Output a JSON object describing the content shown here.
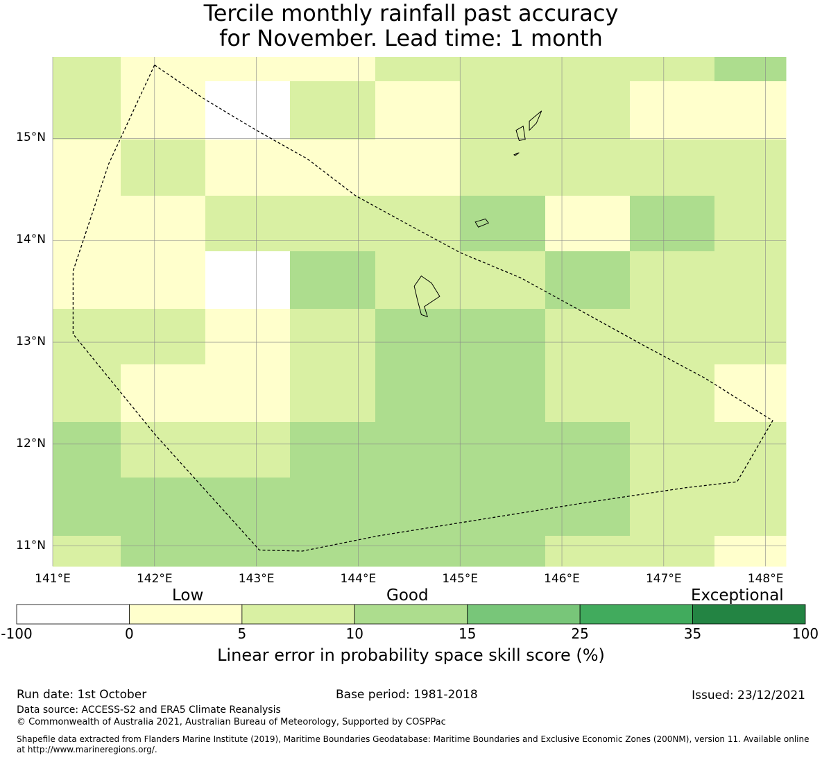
{
  "title_line1": "Tercile monthly rainfall past accuracy",
  "title_line2": "for November. Lead time: 1 month",
  "map": {
    "lon_range": [
      141.0,
      148.2
    ],
    "lat_range": [
      10.8,
      15.8
    ],
    "lon_ticks": [
      141,
      142,
      143,
      144,
      145,
      146,
      147,
      148
    ],
    "lat_ticks": [
      11,
      12,
      13,
      14,
      15
    ],
    "lon_tick_labels": [
      "141°E",
      "142°E",
      "143°E",
      "144°E",
      "145°E",
      "146°E",
      "147°E",
      "148°E"
    ],
    "lat_tick_labels": [
      "11°N",
      "12°N",
      "13°N",
      "14°N",
      "15°N"
    ],
    "grid_lon_edges": [
      141.0,
      141.667,
      142.5,
      143.333,
      144.167,
      145.0,
      145.833,
      146.667,
      147.5,
      148.2
    ],
    "grid_lat_edges": [
      15.8,
      15.56,
      14.99,
      14.44,
      13.89,
      13.33,
      12.78,
      12.22,
      11.67,
      11.1,
      10.8
    ],
    "skill_grid_classes": [
      [
        2,
        1,
        1,
        1,
        2,
        2,
        2,
        2,
        3
      ],
      [
        2,
        1,
        0,
        2,
        1,
        2,
        2,
        1,
        1
      ],
      [
        1,
        2,
        1,
        1,
        1,
        2,
        2,
        2,
        2
      ],
      [
        1,
        1,
        2,
        2,
        2,
        3,
        1,
        3,
        2
      ],
      [
        1,
        1,
        0,
        3,
        2,
        2,
        3,
        2,
        2
      ],
      [
        2,
        2,
        1,
        2,
        3,
        3,
        2,
        2,
        2
      ],
      [
        2,
        1,
        1,
        2,
        3,
        3,
        2,
        2,
        1
      ],
      [
        3,
        2,
        2,
        3,
        3,
        3,
        3,
        2,
        2
      ],
      [
        3,
        3,
        3,
        3,
        3,
        3,
        3,
        2,
        2
      ],
      [
        2,
        3,
        3,
        3,
        3,
        3,
        2,
        2,
        1
      ]
    ],
    "eez_boundary": [
      [
        142.0,
        15.72
      ],
      [
        142.5,
        15.38
      ],
      [
        143.0,
        15.08
      ],
      [
        143.5,
        14.8
      ],
      [
        143.97,
        14.44
      ],
      [
        144.5,
        14.15
      ],
      [
        145.0,
        13.88
      ],
      [
        145.6,
        13.63
      ],
      [
        146.2,
        13.3
      ],
      [
        146.8,
        12.97
      ],
      [
        147.4,
        12.65
      ],
      [
        148.07,
        12.23
      ],
      [
        147.72,
        11.63
      ],
      [
        147.2,
        11.57
      ],
      [
        146.2,
        11.42
      ],
      [
        145.2,
        11.26
      ],
      [
        144.2,
        11.1
      ],
      [
        143.45,
        10.95
      ],
      [
        143.03,
        10.96
      ],
      [
        142.0,
        12.1
      ],
      [
        141.2,
        13.08
      ],
      [
        141.2,
        13.7
      ],
      [
        141.55,
        14.75
      ],
      [
        142.0,
        15.72
      ]
    ],
    "islands": [
      [
        [
          144.62,
          13.65
        ],
        [
          144.72,
          13.58
        ],
        [
          144.8,
          13.45
        ],
        [
          144.65,
          13.35
        ],
        [
          144.68,
          13.25
        ],
        [
          144.62,
          13.27
        ],
        [
          144.58,
          13.42
        ],
        [
          144.55,
          13.55
        ],
        [
          144.62,
          13.65
        ]
      ],
      [
        [
          145.15,
          14.18
        ],
        [
          145.25,
          14.21
        ],
        [
          145.28,
          14.17
        ],
        [
          145.18,
          14.13
        ],
        [
          145.15,
          14.18
        ]
      ],
      [
        [
          145.55,
          15.08
        ],
        [
          145.62,
          15.12
        ],
        [
          145.64,
          14.99
        ],
        [
          145.58,
          14.98
        ],
        [
          145.55,
          15.08
        ]
      ],
      [
        [
          145.68,
          15.17
        ],
        [
          145.8,
          15.27
        ],
        [
          145.75,
          15.15
        ],
        [
          145.68,
          15.08
        ],
        [
          145.68,
          15.17
        ]
      ],
      [
        [
          145.53,
          14.84
        ],
        [
          145.58,
          14.86
        ],
        [
          145.54,
          14.83
        ],
        [
          145.53,
          14.84
        ]
      ]
    ]
  },
  "colorbar": {
    "colors": [
      "#ffffff",
      "#ffffcc",
      "#d9f0a3",
      "#addd8e",
      "#78c679",
      "#41ab5d",
      "#238443"
    ],
    "ticks": [
      "-100",
      "0",
      "5",
      "10",
      "15",
      "25",
      "35",
      "100"
    ],
    "category_low": "Low",
    "category_good": "Good",
    "category_exceptional": "Exceptional",
    "label": "Linear error in probability space skill score (%)"
  },
  "footer": {
    "run_date": "Run date: 1st October",
    "base_period": "Base period: 1981-2018",
    "issued": "Issued: 23/12/2021",
    "data_source": "Data source: ACCESS-S2 and ERA5 Climate Reanalysis",
    "copyright": "© Commonwealth of Australia 2021, Australian Bureau of Meteorology, Supported by COSPPac",
    "shapefile_line1": "Shapefile data extracted from Flanders Marine Institute (2019), Maritime Boundaries Geodatabase: Maritime Boundaries and Exclusive Economic Zones (200NM), version 11. Available online",
    "shapefile_line2": "at http://www.marineregions.org/."
  }
}
